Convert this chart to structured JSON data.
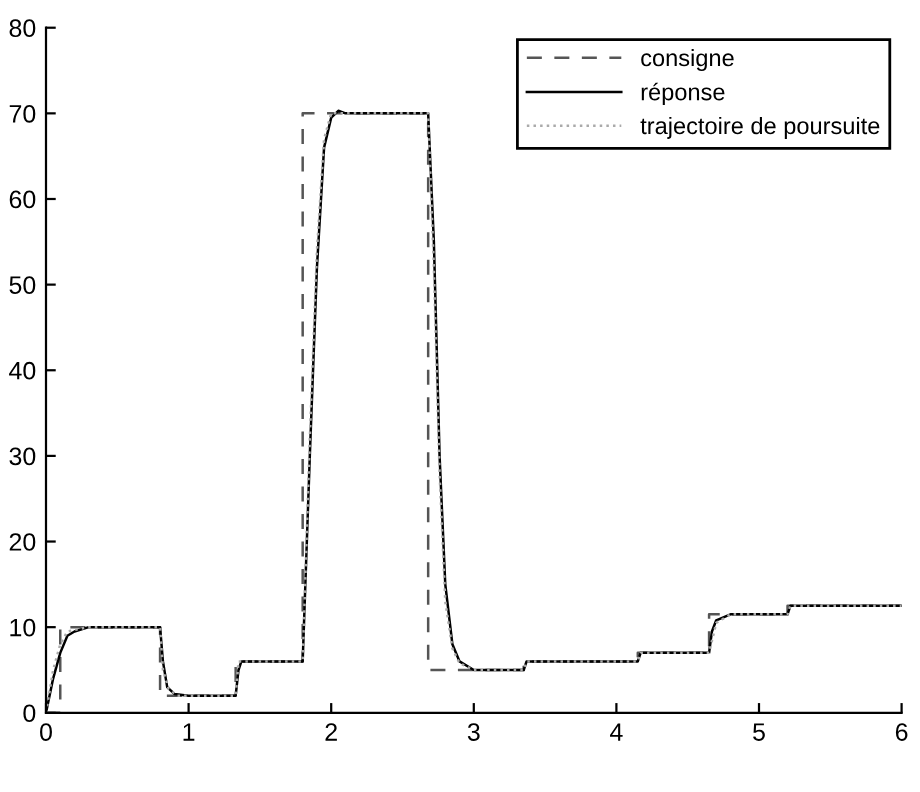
{
  "chart_data": {
    "type": "line",
    "xlim": [
      0,
      6
    ],
    "ylim": [
      0,
      80
    ],
    "xticks": [
      0,
      1,
      2,
      3,
      4,
      5,
      6
    ],
    "yticks": [
      0,
      10,
      20,
      30,
      40,
      50,
      60,
      70,
      80
    ],
    "grid": false,
    "legend": "top right",
    "series": [
      {
        "name": "consigne",
        "color": "#555555",
        "line_style": "dashed",
        "x": [
          0,
          0.1,
          0.1,
          0.8,
          0.8,
          1.33,
          1.33,
          1.8,
          1.8,
          2.68,
          2.68,
          2.85,
          3.35,
          3.35,
          4.15,
          4.15,
          4.65,
          4.65,
          5.2,
          5.2,
          6
        ],
        "values": [
          0,
          0,
          10,
          10,
          2,
          2,
          6,
          6,
          70,
          70,
          5,
          5,
          5,
          6,
          6,
          7,
          7,
          11.5,
          11.5,
          12.5,
          12.5
        ]
      },
      {
        "name": "réponse",
        "color": "#000000",
        "line_style": "solid",
        "x": [
          0,
          0.05,
          0.1,
          0.15,
          0.2,
          0.3,
          0.8,
          0.82,
          0.85,
          0.9,
          1.0,
          1.33,
          1.35,
          1.37,
          1.8,
          1.85,
          1.9,
          1.95,
          2.0,
          2.05,
          2.1,
          2.68,
          2.72,
          2.76,
          2.8,
          2.85,
          2.9,
          3.0,
          3.35,
          3.37,
          4.15,
          4.17,
          4.65,
          4.67,
          4.7,
          4.8,
          5.2,
          5.22,
          6
        ],
        "values": [
          0,
          4,
          7,
          9,
          9.5,
          10,
          10,
          6,
          3,
          2.2,
          2,
          2,
          5,
          6,
          6,
          30,
          52,
          66,
          69.5,
          70.3,
          70,
          70,
          55,
          30,
          15,
          8,
          6,
          5,
          5,
          6,
          6,
          7,
          7,
          9.5,
          10.8,
          11.5,
          11.5,
          12.5,
          12.5
        ]
      },
      {
        "name": "trajectoire de poursuite",
        "color": "#aaaaaa",
        "line_style": "dotted",
        "x": [
          0,
          0.05,
          0.1,
          0.15,
          0.3,
          0.8,
          0.82,
          0.86,
          0.92,
          1.33,
          1.35,
          1.8,
          1.85,
          1.9,
          1.95,
          2.0,
          2.05,
          2.68,
          2.72,
          2.76,
          2.8,
          2.85,
          2.9,
          3.0,
          3.35,
          3.37,
          4.15,
          4.17,
          4.65,
          4.7,
          4.8,
          5.2,
          5.22,
          6
        ],
        "values": [
          0,
          5,
          8,
          9.5,
          10,
          10,
          5,
          2.8,
          2,
          2,
          6,
          6,
          32,
          54,
          67,
          70,
          70,
          70,
          52,
          28,
          13,
          7.5,
          5.8,
          5,
          5,
          6,
          6,
          7,
          7,
          10.5,
          11.5,
          11.5,
          12.5,
          12.5
        ]
      }
    ]
  }
}
